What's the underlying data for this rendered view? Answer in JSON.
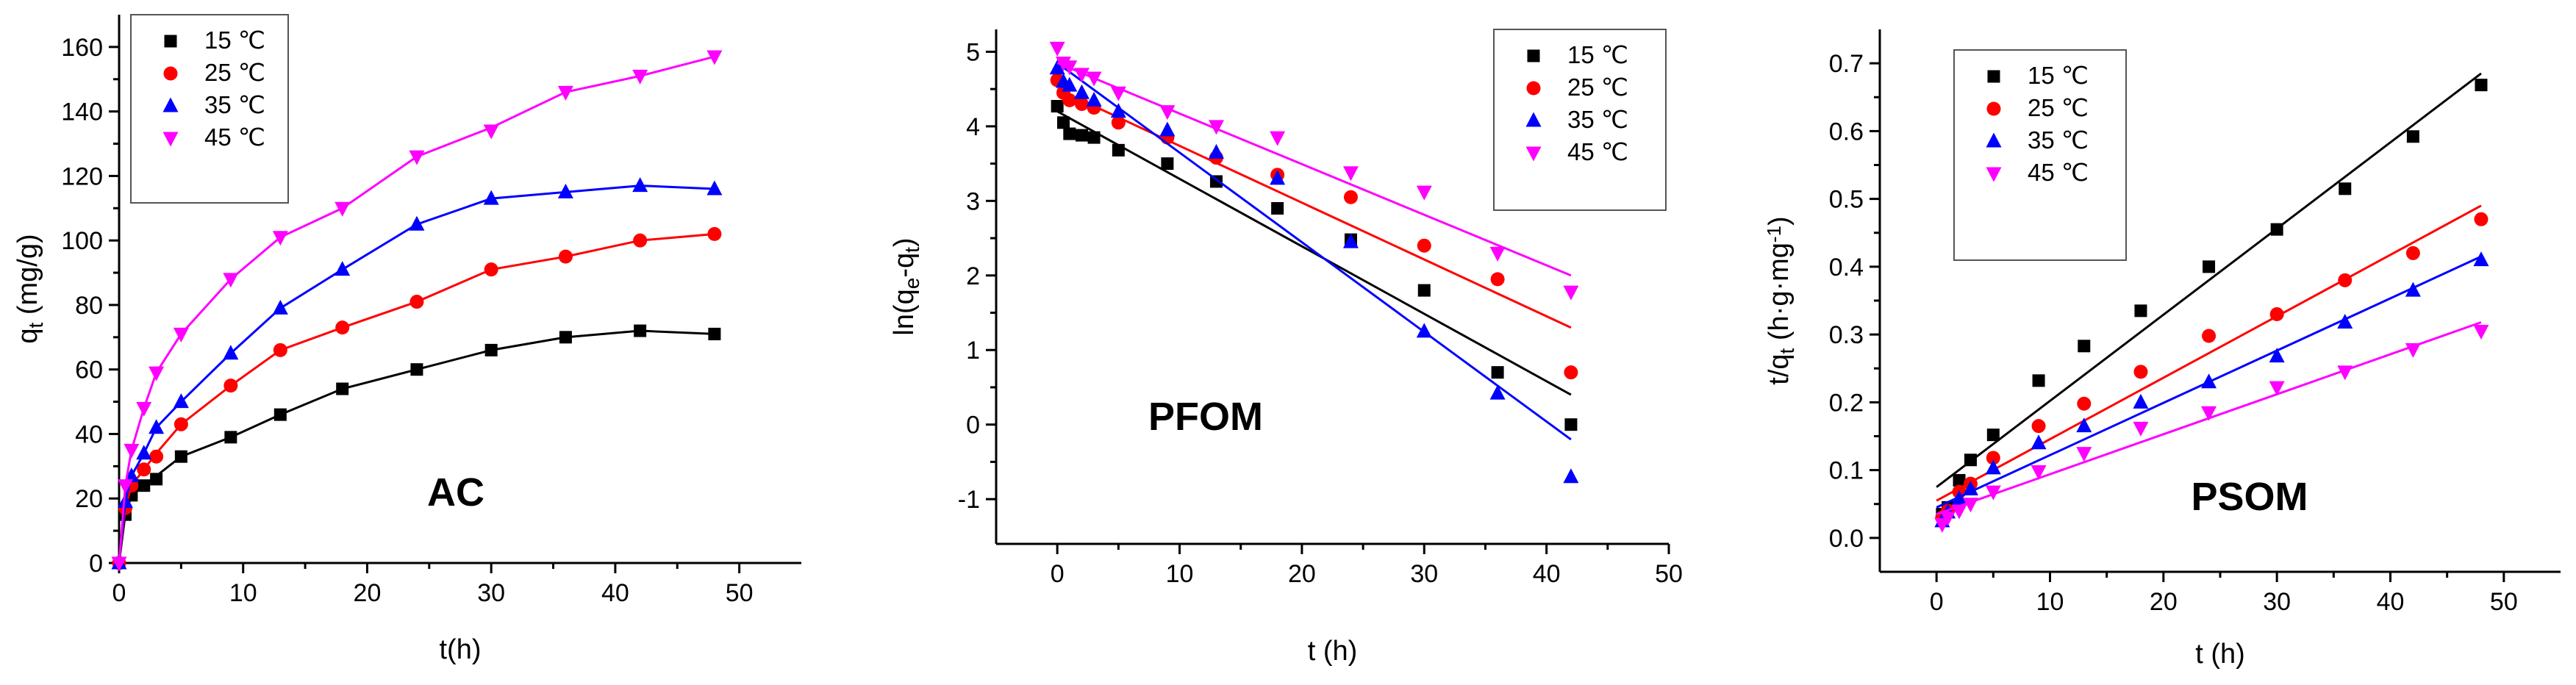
{
  "colors": {
    "s15": "#000000",
    "s25": "#ff0000",
    "s35": "#0000ff",
    "s45": "#ff00ff"
  },
  "legend_labels": [
    "15 ℃",
    "25 ℃",
    "35 ℃",
    "45 ℃"
  ],
  "chart_data": [
    {
      "type": "scatter",
      "title": "AC",
      "xlabel": "t(h)",
      "ylabel_main": "q",
      "ylabel_sub": "t",
      "ylabel_tail": " (mg/g)",
      "xlim": [
        0,
        55
      ],
      "ylim": [
        0,
        170
      ],
      "xticks": [
        0,
        10,
        20,
        30,
        40,
        50
      ],
      "yticks": [
        0,
        20,
        40,
        60,
        80,
        100,
        120,
        140,
        160
      ],
      "x": [
        0,
        0.5,
        1,
        2,
        3,
        5,
        9,
        13,
        18,
        24,
        30,
        36,
        42,
        48
      ],
      "series": [
        {
          "name": "15 ℃",
          "marker": "square",
          "values": [
            0,
            15,
            21,
            24,
            26,
            33,
            39,
            46,
            54,
            60,
            66,
            70,
            72,
            71
          ],
          "fit": [
            0,
            15,
            21,
            24,
            27,
            33,
            39,
            46,
            54,
            60,
            66,
            70,
            72,
            71
          ]
        },
        {
          "name": "25 ℃",
          "marker": "circle",
          "values": [
            0,
            17,
            24,
            29,
            33,
            43,
            55,
            66,
            73,
            81,
            91,
            95,
            100,
            102
          ],
          "fit": [
            0,
            17,
            24,
            29,
            34,
            43,
            55,
            66,
            73,
            81,
            91,
            95,
            100,
            102
          ]
        },
        {
          "name": "35 ℃",
          "marker": "triangle-up",
          "values": [
            0,
            19,
            27,
            34,
            42,
            50,
            65,
            79,
            91,
            105,
            113,
            115,
            117,
            116
          ],
          "fit": [
            0,
            19,
            27,
            34,
            42,
            50,
            65,
            79,
            91,
            105,
            113,
            115,
            117,
            116
          ]
        },
        {
          "name": "45 ℃",
          "marker": "triangle-down",
          "values": [
            0,
            24,
            35,
            48,
            59,
            71,
            88,
            101,
            110,
            126,
            134,
            146,
            151,
            157
          ],
          "fit": [
            0,
            24,
            35,
            48,
            59,
            71,
            88,
            101,
            110,
            126,
            135,
            146,
            151,
            157
          ]
        }
      ]
    },
    {
      "type": "scatter",
      "title": "PFOM",
      "xlabel": "t (h)",
      "ylabel_main": "ln(q",
      "ylabel_sub": "e",
      "ylabel_mid": "-q",
      "ylabel_sub2": "t",
      "ylabel_tail": ")",
      "xlim": [
        -5,
        50
      ],
      "ylim": [
        -1.6,
        5.3
      ],
      "xticks": [
        0,
        10,
        20,
        30,
        40,
        50
      ],
      "yticks": [
        -1,
        0,
        1,
        2,
        3,
        4,
        5
      ],
      "x": [
        0,
        0.5,
        1,
        2,
        3,
        5,
        9,
        13,
        18,
        24,
        30,
        36,
        42
      ],
      "series": [
        {
          "name": "15 ℃",
          "marker": "square",
          "values": [
            4.27,
            4.05,
            3.9,
            3.88,
            3.85,
            3.68,
            3.5,
            3.26,
            2.9,
            2.48,
            1.8,
            0.7,
            0.0
          ],
          "fit_line": [
            [
              0,
              4.2
            ],
            [
              42,
              0.4
            ]
          ]
        },
        {
          "name": "25 ℃",
          "marker": "circle",
          "values": [
            4.62,
            4.45,
            4.35,
            4.3,
            4.25,
            4.05,
            3.85,
            3.58,
            3.35,
            3.05,
            2.4,
            1.95,
            0.7
          ],
          "fit_line": [
            [
              0,
              4.5
            ],
            [
              42,
              1.3
            ]
          ]
        },
        {
          "name": "35 ℃",
          "marker": "triangle-up",
          "values": [
            4.78,
            4.6,
            4.55,
            4.45,
            4.35,
            4.2,
            3.95,
            3.65,
            3.3,
            2.45,
            1.25,
            0.42,
            -0.7
          ],
          "fit_line": [
            [
              0,
              4.85
            ],
            [
              42,
              -0.2
            ]
          ]
        },
        {
          "name": "45 ℃",
          "marker": "triangle-down",
          "values": [
            5.05,
            4.85,
            4.8,
            4.7,
            4.65,
            4.45,
            4.2,
            4.0,
            3.85,
            3.38,
            3.12,
            2.3,
            1.78
          ],
          "fit_line": [
            [
              0,
              4.85
            ],
            [
              42,
              2.0
            ]
          ]
        }
      ]
    },
    {
      "type": "scatter",
      "title": "PSOM",
      "xlabel": "t (h)",
      "ylabel_main": "t/q",
      "ylabel_sub": "t",
      "ylabel_tail": " (h·g·mg",
      "ylabel_sup": "-1",
      "ylabel_end": ")",
      "xlim": [
        -5,
        55
      ],
      "ylim": [
        -0.05,
        0.75
      ],
      "xticks": [
        0,
        10,
        20,
        30,
        40,
        50
      ],
      "yticks": [
        0.0,
        0.1,
        0.2,
        0.3,
        0.4,
        0.5,
        0.6,
        0.7
      ],
      "x": [
        0.5,
        1,
        2,
        3,
        5,
        9,
        13,
        18,
        24,
        30,
        36,
        42,
        48
      ],
      "series": [
        {
          "name": "15 ℃",
          "marker": "square",
          "values": [
            0.035,
            0.045,
            0.085,
            0.115,
            0.152,
            0.232,
            0.283,
            0.335,
            0.4,
            0.455,
            0.515,
            0.592,
            0.668
          ],
          "fit_line": [
            [
              0,
              0.075
            ],
            [
              48,
              0.685
            ]
          ]
        },
        {
          "name": "25 ℃",
          "marker": "circle",
          "values": [
            0.03,
            0.04,
            0.068,
            0.08,
            0.118,
            0.165,
            0.198,
            0.245,
            0.298,
            0.33,
            0.38,
            0.42,
            0.47
          ],
          "fit_line": [
            [
              0,
              0.055
            ],
            [
              48,
              0.49
            ]
          ]
        },
        {
          "name": "35 ℃",
          "marker": "triangle-up",
          "values": [
            0.025,
            0.038,
            0.058,
            0.072,
            0.103,
            0.14,
            0.165,
            0.2,
            0.23,
            0.268,
            0.318,
            0.365,
            0.41
          ],
          "fit_line": [
            [
              0,
              0.045
            ],
            [
              48,
              0.415
            ]
          ]
        },
        {
          "name": "45 ℃",
          "marker": "triangle-down",
          "values": [
            0.02,
            0.03,
            0.04,
            0.05,
            0.068,
            0.098,
            0.125,
            0.162,
            0.185,
            0.222,
            0.245,
            0.278,
            0.305
          ],
          "fit_line": [
            [
              0,
              0.035
            ],
            [
              48,
              0.318
            ]
          ]
        }
      ]
    }
  ]
}
